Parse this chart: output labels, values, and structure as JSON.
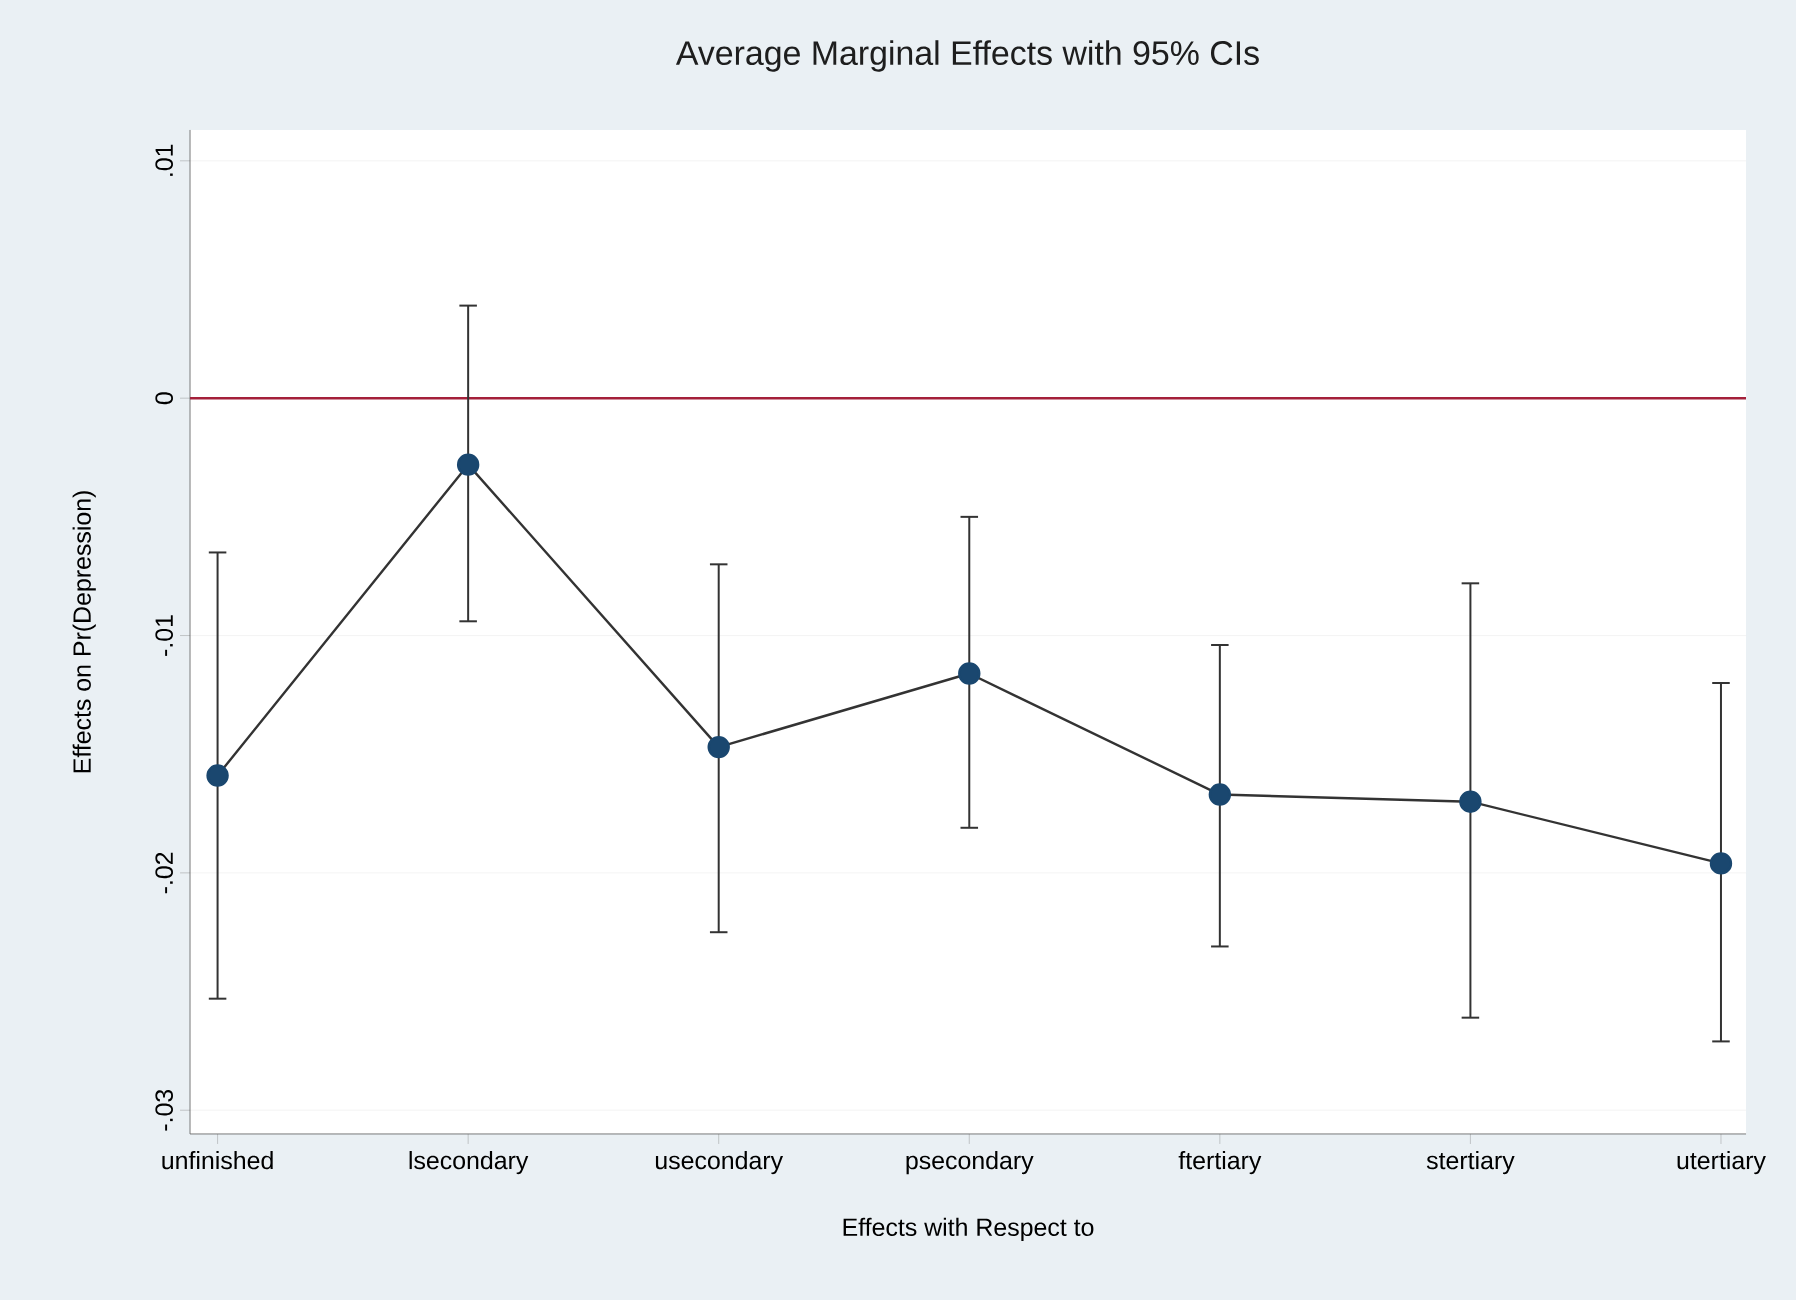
{
  "chart_data": {
    "type": "line",
    "title": "Average Marginal Effects with 95% CIs",
    "xlabel": "Effects with Respect to",
    "ylabel": "Effects on Pr(Depression)",
    "categories": [
      "unfinished",
      "lsecondary",
      "usecondary",
      "psecondary",
      "ftertiary",
      "stertiary",
      "utertiary"
    ],
    "values": [
      -0.0159,
      -0.0028,
      -0.0147,
      -0.0116,
      -0.0167,
      -0.017,
      -0.0196
    ],
    "errors": [
      [
        -0.0253,
        -0.0065
      ],
      [
        -0.0094,
        0.0039
      ],
      [
        -0.0225,
        -0.007
      ],
      [
        -0.0181,
        -0.005
      ],
      [
        -0.0231,
        -0.0104
      ],
      [
        -0.0261,
        -0.0078
      ],
      [
        -0.0271,
        -0.012
      ]
    ],
    "color": "#1a476f",
    "marker": "circle",
    "line_style": "solid",
    "grid": "y",
    "ylim": [
      -0.031,
      0.0113
    ],
    "yticks": [
      {
        "value": 0.01,
        "label": ".01"
      },
      {
        "value": 0,
        "label": "0"
      },
      {
        "value": -0.01,
        "label": "-.01"
      },
      {
        "value": -0.02,
        "label": "-.02"
      },
      {
        "value": -0.03,
        "label": "-.03"
      }
    ],
    "ref_lines": [
      {
        "axis": "y",
        "value": 0,
        "color": "#a4203a"
      }
    ]
  }
}
